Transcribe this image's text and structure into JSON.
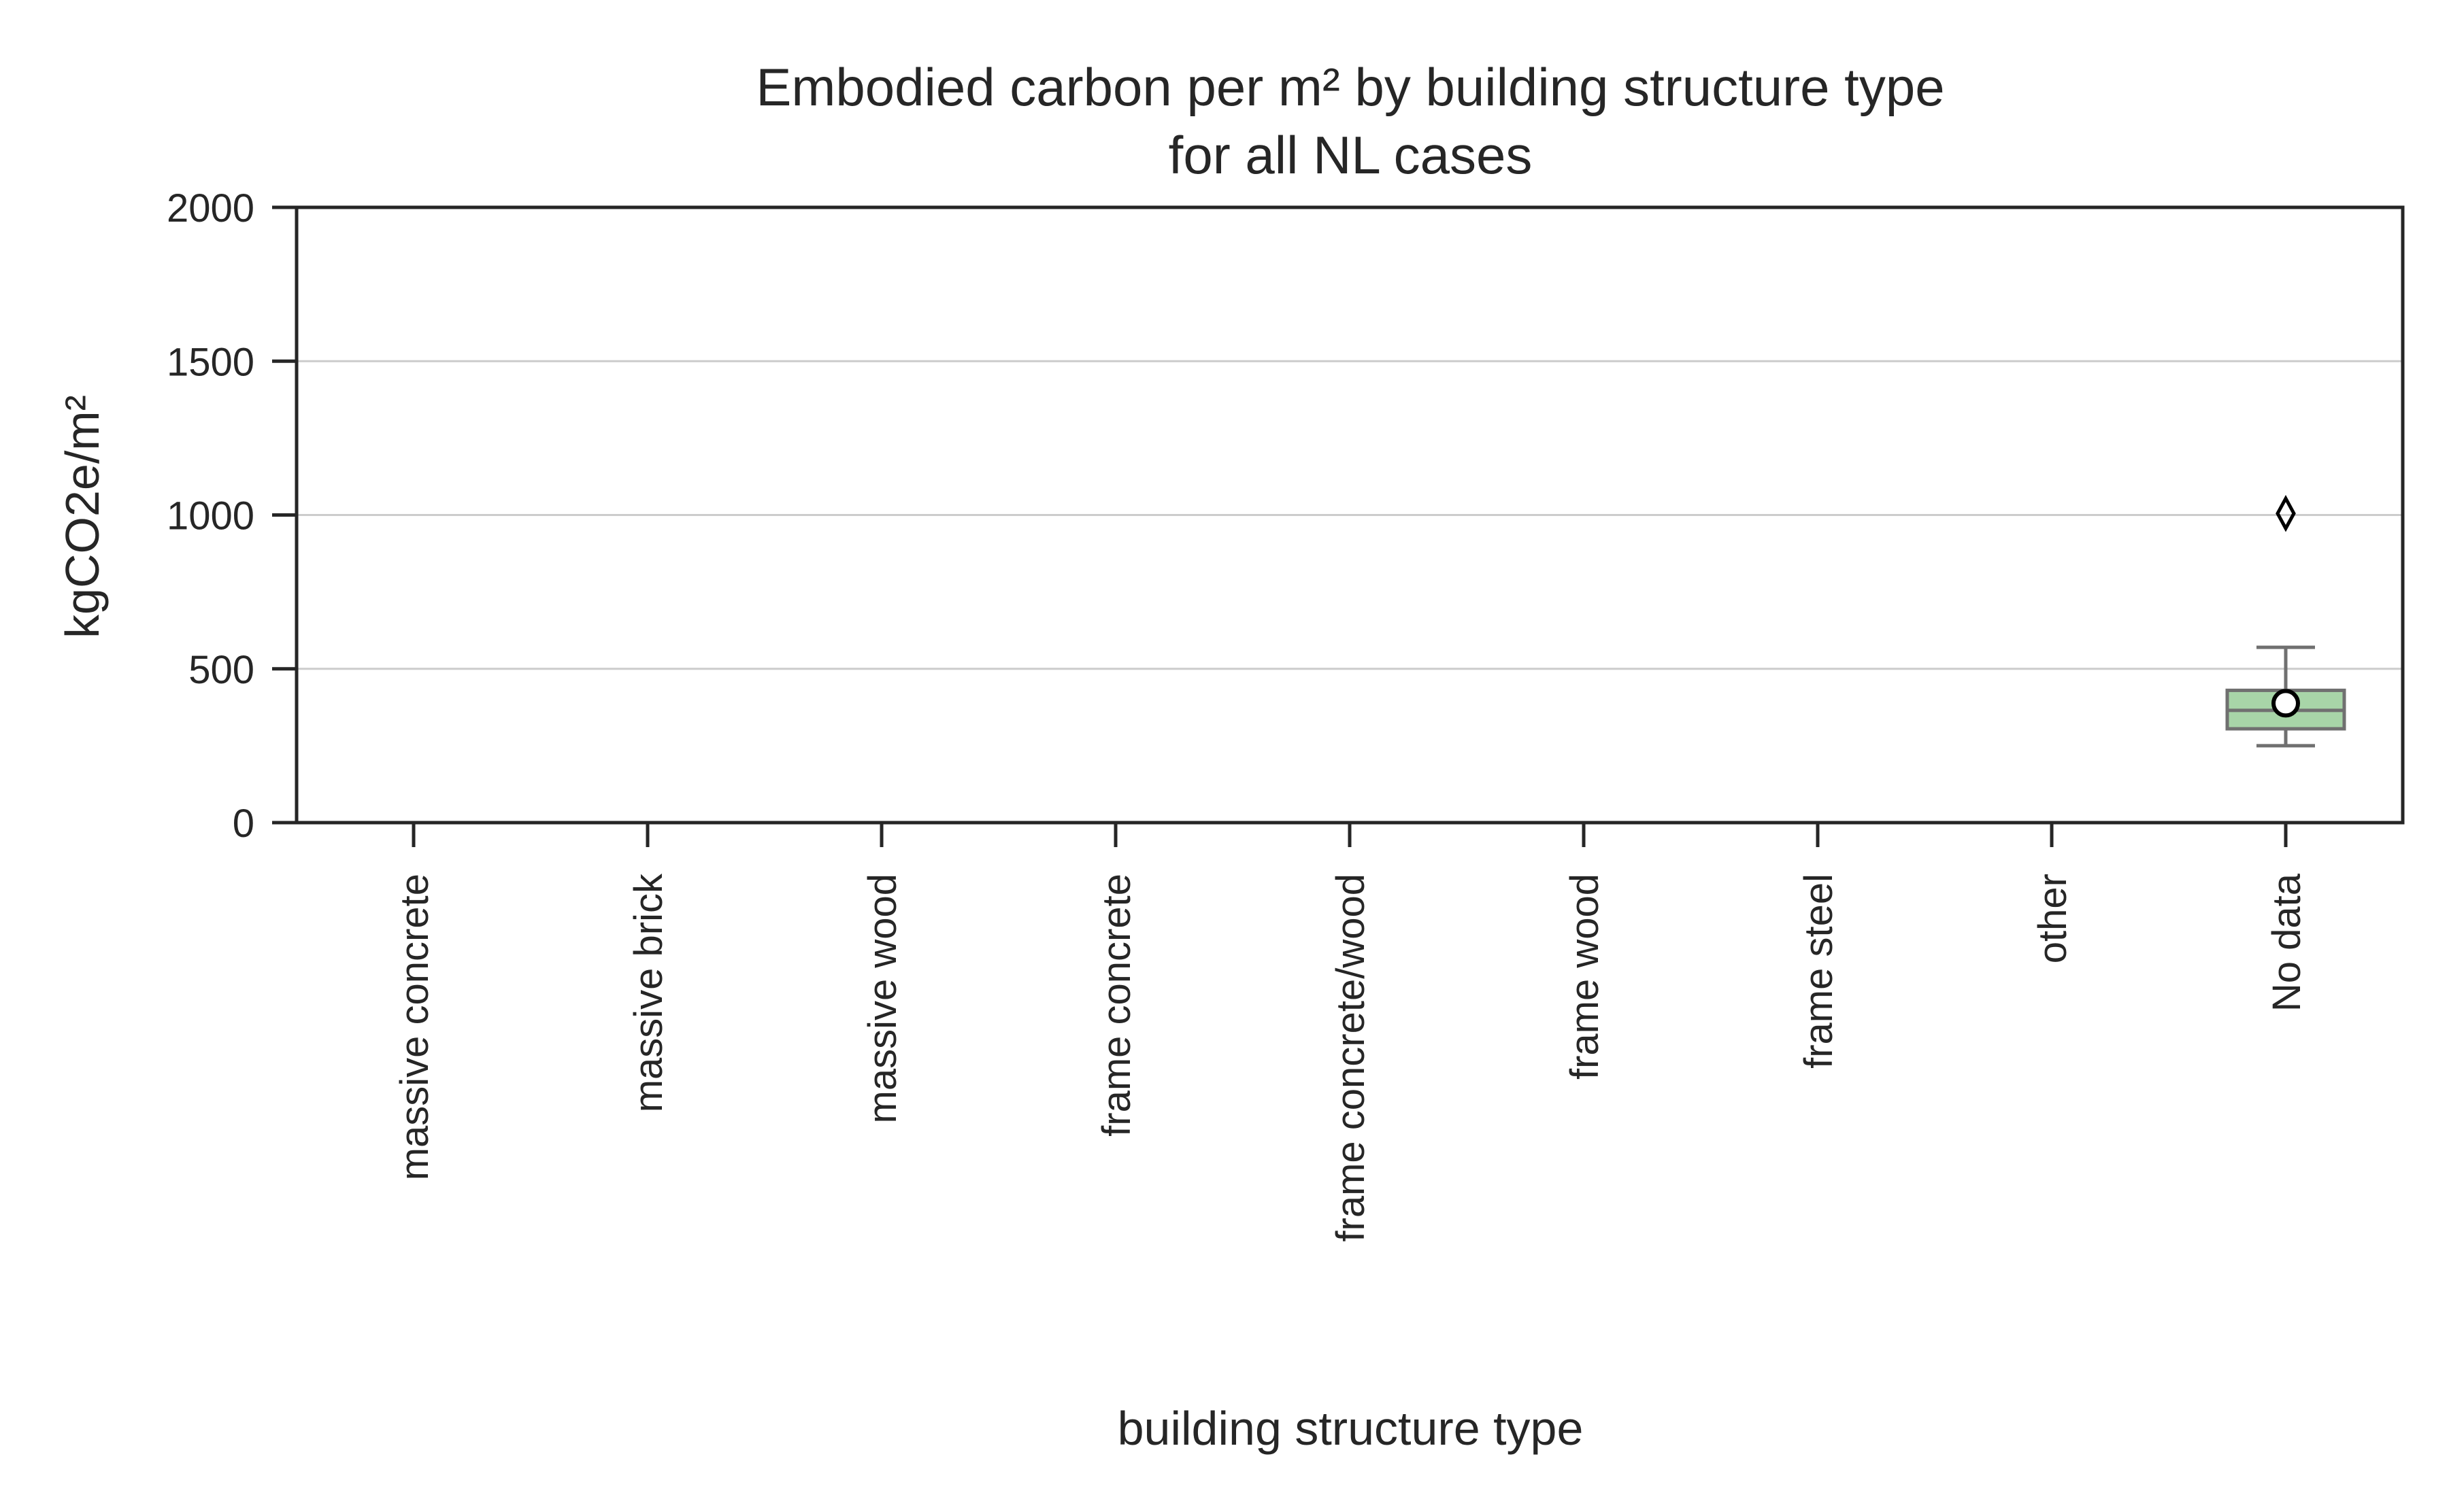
{
  "chart_data": {
    "type": "box",
    "title": "Embodied carbon per m² by building structure type",
    "subtitle": "for all NL cases",
    "xlabel": "building structure type",
    "ylabel": "kgCO2e/m²",
    "ylim": [
      0,
      2000
    ],
    "yticks": [
      0,
      500,
      1000,
      1500,
      2000
    ],
    "grid": "y",
    "categories": [
      "massive concrete",
      "massive brick",
      "massive wood",
      "frame concrete",
      "frame concrete/wood",
      "frame wood",
      "frame steel",
      "other",
      "No data"
    ],
    "boxes": [
      {
        "category": "No data",
        "whisker_low": 250,
        "q1": 305,
        "median": 365,
        "q3": 430,
        "whisker_high": 570,
        "mean": 388,
        "outliers": [
          1005
        ],
        "color": "#a8d5a8"
      }
    ]
  }
}
